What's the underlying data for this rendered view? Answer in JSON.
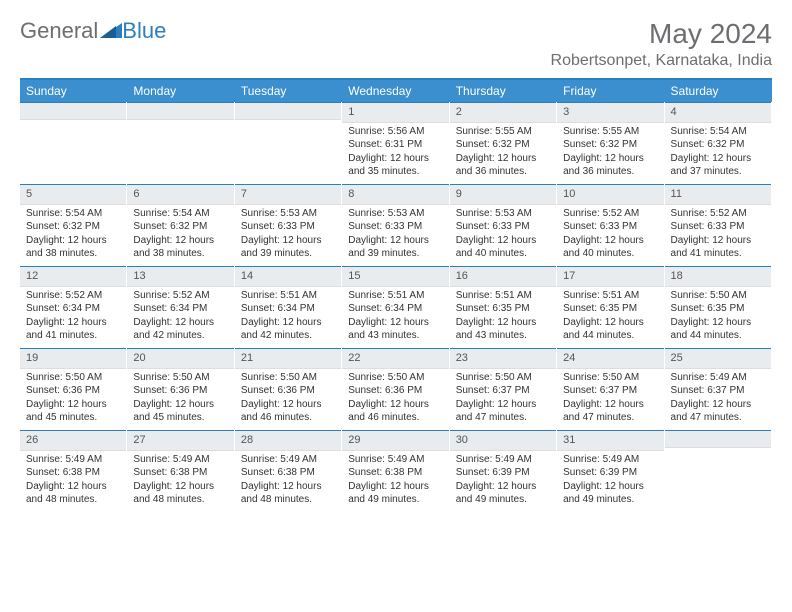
{
  "logo": {
    "general": "General",
    "blue": "Blue"
  },
  "title": "May 2024",
  "location": "Robertsonpet, Karnataka, India",
  "colors": {
    "header_bg": "#3b8fce",
    "header_border": "#2b7fbf",
    "daynum_bg": "#e9ecef",
    "text": "#333333",
    "muted": "#6d6e71"
  },
  "dayHeaders": [
    "Sunday",
    "Monday",
    "Tuesday",
    "Wednesday",
    "Thursday",
    "Friday",
    "Saturday"
  ],
  "weeks": [
    [
      {
        "day": "",
        "lines": []
      },
      {
        "day": "",
        "lines": []
      },
      {
        "day": "",
        "lines": []
      },
      {
        "day": "1",
        "lines": [
          "Sunrise: 5:56 AM",
          "Sunset: 6:31 PM",
          "Daylight: 12 hours and 35 minutes."
        ]
      },
      {
        "day": "2",
        "lines": [
          "Sunrise: 5:55 AM",
          "Sunset: 6:32 PM",
          "Daylight: 12 hours and 36 minutes."
        ]
      },
      {
        "day": "3",
        "lines": [
          "Sunrise: 5:55 AM",
          "Sunset: 6:32 PM",
          "Daylight: 12 hours and 36 minutes."
        ]
      },
      {
        "day": "4",
        "lines": [
          "Sunrise: 5:54 AM",
          "Sunset: 6:32 PM",
          "Daylight: 12 hours and 37 minutes."
        ]
      }
    ],
    [
      {
        "day": "5",
        "lines": [
          "Sunrise: 5:54 AM",
          "Sunset: 6:32 PM",
          "Daylight: 12 hours and 38 minutes."
        ]
      },
      {
        "day": "6",
        "lines": [
          "Sunrise: 5:54 AM",
          "Sunset: 6:32 PM",
          "Daylight: 12 hours and 38 minutes."
        ]
      },
      {
        "day": "7",
        "lines": [
          "Sunrise: 5:53 AM",
          "Sunset: 6:33 PM",
          "Daylight: 12 hours and 39 minutes."
        ]
      },
      {
        "day": "8",
        "lines": [
          "Sunrise: 5:53 AM",
          "Sunset: 6:33 PM",
          "Daylight: 12 hours and 39 minutes."
        ]
      },
      {
        "day": "9",
        "lines": [
          "Sunrise: 5:53 AM",
          "Sunset: 6:33 PM",
          "Daylight: 12 hours and 40 minutes."
        ]
      },
      {
        "day": "10",
        "lines": [
          "Sunrise: 5:52 AM",
          "Sunset: 6:33 PM",
          "Daylight: 12 hours and 40 minutes."
        ]
      },
      {
        "day": "11",
        "lines": [
          "Sunrise: 5:52 AM",
          "Sunset: 6:33 PM",
          "Daylight: 12 hours and 41 minutes."
        ]
      }
    ],
    [
      {
        "day": "12",
        "lines": [
          "Sunrise: 5:52 AM",
          "Sunset: 6:34 PM",
          "Daylight: 12 hours and 41 minutes."
        ]
      },
      {
        "day": "13",
        "lines": [
          "Sunrise: 5:52 AM",
          "Sunset: 6:34 PM",
          "Daylight: 12 hours and 42 minutes."
        ]
      },
      {
        "day": "14",
        "lines": [
          "Sunrise: 5:51 AM",
          "Sunset: 6:34 PM",
          "Daylight: 12 hours and 42 minutes."
        ]
      },
      {
        "day": "15",
        "lines": [
          "Sunrise: 5:51 AM",
          "Sunset: 6:34 PM",
          "Daylight: 12 hours and 43 minutes."
        ]
      },
      {
        "day": "16",
        "lines": [
          "Sunrise: 5:51 AM",
          "Sunset: 6:35 PM",
          "Daylight: 12 hours and 43 minutes."
        ]
      },
      {
        "day": "17",
        "lines": [
          "Sunrise: 5:51 AM",
          "Sunset: 6:35 PM",
          "Daylight: 12 hours and 44 minutes."
        ]
      },
      {
        "day": "18",
        "lines": [
          "Sunrise: 5:50 AM",
          "Sunset: 6:35 PM",
          "Daylight: 12 hours and 44 minutes."
        ]
      }
    ],
    [
      {
        "day": "19",
        "lines": [
          "Sunrise: 5:50 AM",
          "Sunset: 6:36 PM",
          "Daylight: 12 hours and 45 minutes."
        ]
      },
      {
        "day": "20",
        "lines": [
          "Sunrise: 5:50 AM",
          "Sunset: 6:36 PM",
          "Daylight: 12 hours and 45 minutes."
        ]
      },
      {
        "day": "21",
        "lines": [
          "Sunrise: 5:50 AM",
          "Sunset: 6:36 PM",
          "Daylight: 12 hours and 46 minutes."
        ]
      },
      {
        "day": "22",
        "lines": [
          "Sunrise: 5:50 AM",
          "Sunset: 6:36 PM",
          "Daylight: 12 hours and 46 minutes."
        ]
      },
      {
        "day": "23",
        "lines": [
          "Sunrise: 5:50 AM",
          "Sunset: 6:37 PM",
          "Daylight: 12 hours and 47 minutes."
        ]
      },
      {
        "day": "24",
        "lines": [
          "Sunrise: 5:50 AM",
          "Sunset: 6:37 PM",
          "Daylight: 12 hours and 47 minutes."
        ]
      },
      {
        "day": "25",
        "lines": [
          "Sunrise: 5:49 AM",
          "Sunset: 6:37 PM",
          "Daylight: 12 hours and 47 minutes."
        ]
      }
    ],
    [
      {
        "day": "26",
        "lines": [
          "Sunrise: 5:49 AM",
          "Sunset: 6:38 PM",
          "Daylight: 12 hours and 48 minutes."
        ]
      },
      {
        "day": "27",
        "lines": [
          "Sunrise: 5:49 AM",
          "Sunset: 6:38 PM",
          "Daylight: 12 hours and 48 minutes."
        ]
      },
      {
        "day": "28",
        "lines": [
          "Sunrise: 5:49 AM",
          "Sunset: 6:38 PM",
          "Daylight: 12 hours and 48 minutes."
        ]
      },
      {
        "day": "29",
        "lines": [
          "Sunrise: 5:49 AM",
          "Sunset: 6:38 PM",
          "Daylight: 12 hours and 49 minutes."
        ]
      },
      {
        "day": "30",
        "lines": [
          "Sunrise: 5:49 AM",
          "Sunset: 6:39 PM",
          "Daylight: 12 hours and 49 minutes."
        ]
      },
      {
        "day": "31",
        "lines": [
          "Sunrise: 5:49 AM",
          "Sunset: 6:39 PM",
          "Daylight: 12 hours and 49 minutes."
        ]
      },
      {
        "day": "",
        "lines": []
      }
    ]
  ]
}
